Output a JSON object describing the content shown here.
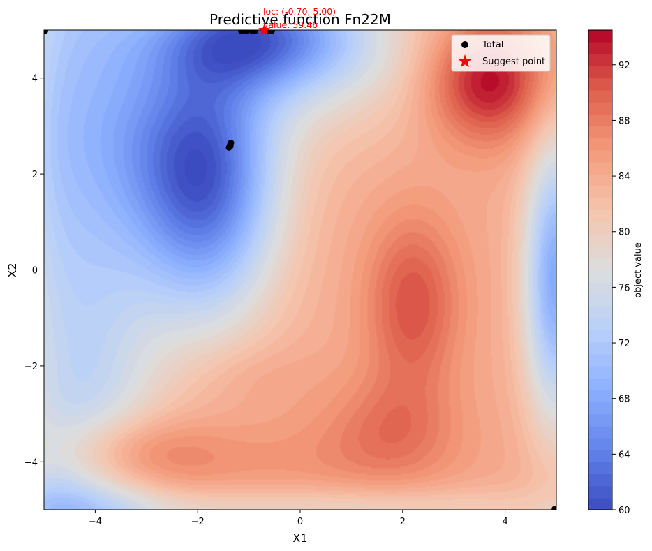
{
  "chart_data": {
    "type": "contour",
    "title": "Predictive function Fn22M",
    "xlabel": "X1",
    "ylabel": "X2",
    "xlim": [
      -5,
      5
    ],
    "ylim": [
      -5,
      5
    ],
    "x_ticks": [
      -4,
      -2,
      0,
      2,
      4
    ],
    "y_ticks": [
      -4,
      -2,
      0,
      2,
      4
    ],
    "x_tick_labels": [
      "−4",
      "−2",
      "0",
      "2",
      "4"
    ],
    "y_tick_labels": [
      "−4",
      "−2",
      "0",
      "2",
      "4"
    ],
    "colormap": "coolwarm",
    "colorbar": {
      "label": "object value",
      "range": [
        60,
        94.5
      ],
      "ticks": [
        60,
        64,
        68,
        72,
        76,
        80,
        84,
        88,
        92
      ],
      "tick_labels": [
        "60",
        "64",
        "68",
        "72",
        "76",
        "80",
        "84",
        "88",
        "92"
      ]
    },
    "surface_features": [
      {
        "kind": "min",
        "x": -1.85,
        "y": 1.35,
        "value": 62
      },
      {
        "kind": "min",
        "x": -0.7,
        "y": 5.0,
        "value": 59.46
      },
      {
        "kind": "max",
        "x": 3.65,
        "y": 3.95,
        "value": 94
      },
      {
        "kind": "max",
        "x": 2.2,
        "y": -0.7,
        "value": 90
      },
      {
        "kind": "max",
        "x": -3.5,
        "y": -3.85,
        "value": 90
      },
      {
        "kind": "max",
        "x": 1.8,
        "y": -3.3,
        "value": 88
      }
    ],
    "series": [
      {
        "name": "Total",
        "marker": "circle",
        "color": "#000000",
        "points": [
          [
            -4.98,
            4.98
          ],
          [
            -1.15,
            4.98
          ],
          [
            -1.05,
            4.98
          ],
          [
            -0.95,
            4.99
          ],
          [
            -0.88,
            4.98
          ],
          [
            -0.6,
            4.98
          ],
          [
            -0.55,
            4.99
          ],
          [
            -1.35,
            2.65
          ],
          [
            -1.37,
            2.6
          ],
          [
            -1.39,
            2.55
          ],
          [
            -1.36,
            2.58
          ],
          [
            4.97,
            -4.98
          ]
        ]
      },
      {
        "name": "Suggest point",
        "marker": "star",
        "color": "#ff0000",
        "points": [
          [
            -0.7,
            5.0
          ]
        ]
      }
    ],
    "annotation": {
      "line1": "loc: (-0.70, 5.00)",
      "line2": "value: 59.46"
    },
    "legend": {
      "position": "top-right",
      "entries": [
        "Total",
        "Suggest point"
      ]
    }
  }
}
